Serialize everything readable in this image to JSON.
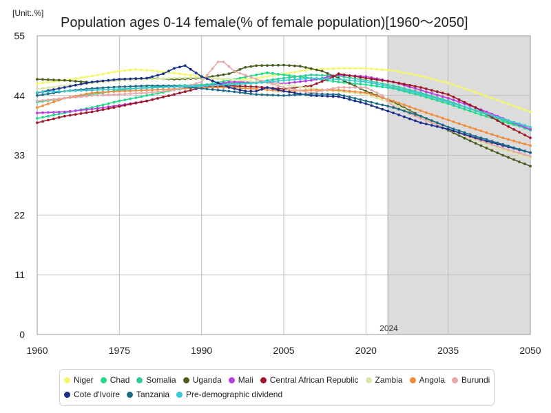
{
  "chart_data": {
    "type": "line",
    "title": "Population ages 0-14 female(% of female population)[1960～2050]",
    "unit_label": "[Unit:.%]",
    "xlabel": "",
    "ylabel": "",
    "xlim": [
      1960,
      2050
    ],
    "ylim": [
      0,
      55
    ],
    "x_ticks": [
      1960,
      1975,
      1990,
      2005,
      2020,
      2035,
      2050
    ],
    "y_ticks": [
      0,
      11,
      22,
      33,
      44,
      55
    ],
    "forecast_start": 2024,
    "forecast_label": "2024",
    "grid": true,
    "legend_position": "bottom",
    "series": [
      {
        "name": "Niger",
        "color": "#f4f76a",
        "points": [
          [
            1960,
            46.2
          ],
          [
            1965,
            46.8
          ],
          [
            1970,
            47.6
          ],
          [
            1975,
            48.5
          ],
          [
            1978,
            48.8
          ],
          [
            1982,
            48.5
          ],
          [
            1990,
            47.5
          ],
          [
            1995,
            46.8
          ],
          [
            2000,
            47.2
          ],
          [
            2005,
            48.0
          ],
          [
            2010,
            48.8
          ],
          [
            2015,
            49.0
          ],
          [
            2020,
            49.0
          ],
          [
            2025,
            48.6
          ],
          [
            2030,
            47.6
          ],
          [
            2035,
            46.3
          ],
          [
            2040,
            44.6
          ],
          [
            2045,
            42.8
          ],
          [
            2050,
            41.0
          ]
        ]
      },
      {
        "name": "Chad",
        "color": "#22d98a",
        "points": [
          [
            1960,
            39.8
          ],
          [
            1965,
            40.8
          ],
          [
            1970,
            41.8
          ],
          [
            1975,
            43.0
          ],
          [
            1980,
            44.0
          ],
          [
            1985,
            45.0
          ],
          [
            1990,
            45.8
          ],
          [
            1995,
            46.8
          ],
          [
            2000,
            47.8
          ],
          [
            2002,
            48.2
          ],
          [
            2005,
            47.8
          ],
          [
            2010,
            47.2
          ],
          [
            2015,
            46.5
          ],
          [
            2020,
            46.0
          ],
          [
            2025,
            45.3
          ],
          [
            2030,
            44.0
          ],
          [
            2035,
            42.5
          ],
          [
            2040,
            40.8
          ],
          [
            2045,
            39.2
          ],
          [
            2050,
            37.8
          ]
        ]
      },
      {
        "name": "Somalia",
        "color": "#33cc99",
        "points": [
          [
            1960,
            42.8
          ],
          [
            1965,
            43.5
          ],
          [
            1970,
            44.2
          ],
          [
            1975,
            45.0
          ],
          [
            1980,
            45.5
          ],
          [
            1985,
            45.8
          ],
          [
            1990,
            46.0
          ],
          [
            1995,
            46.2
          ],
          [
            2000,
            46.5
          ],
          [
            2005,
            47.2
          ],
          [
            2010,
            47.8
          ],
          [
            2015,
            47.6
          ],
          [
            2020,
            46.8
          ],
          [
            2025,
            45.8
          ],
          [
            2030,
            44.5
          ],
          [
            2035,
            43.0
          ],
          [
            2040,
            41.2
          ],
          [
            2045,
            39.5
          ],
          [
            2050,
            37.6
          ]
        ]
      },
      {
        "name": "Uganda",
        "color": "#4a5e1f",
        "points": [
          [
            1960,
            47.0
          ],
          [
            1965,
            46.8
          ],
          [
            1970,
            46.4
          ],
          [
            1975,
            46.8
          ],
          [
            1980,
            47.2
          ],
          [
            1985,
            47.0
          ],
          [
            1990,
            47.2
          ],
          [
            1995,
            48.0
          ],
          [
            1998,
            49.2
          ],
          [
            2000,
            49.5
          ],
          [
            2005,
            49.6
          ],
          [
            2008,
            49.4
          ],
          [
            2012,
            48.5
          ],
          [
            2015,
            47.2
          ],
          [
            2020,
            44.8
          ],
          [
            2025,
            42.8
          ],
          [
            2030,
            40.2
          ],
          [
            2035,
            37.6
          ],
          [
            2040,
            35.2
          ],
          [
            2045,
            33.0
          ],
          [
            2050,
            31.0
          ]
        ]
      },
      {
        "name": "Mali",
        "color": "#b83ee0",
        "points": [
          [
            1960,
            40.8
          ],
          [
            1965,
            41.0
          ],
          [
            1970,
            41.5
          ],
          [
            1975,
            42.2
          ],
          [
            1980,
            43.0
          ],
          [
            1985,
            44.2
          ],
          [
            1990,
            45.5
          ],
          [
            1995,
            46.5
          ],
          [
            2000,
            46.5
          ],
          [
            2005,
            46.2
          ],
          [
            2010,
            46.8
          ],
          [
            2015,
            47.8
          ],
          [
            2020,
            47.5
          ],
          [
            2025,
            46.5
          ],
          [
            2030,
            45.0
          ],
          [
            2035,
            43.5
          ],
          [
            2040,
            41.8
          ],
          [
            2045,
            39.8
          ],
          [
            2050,
            37.8
          ]
        ]
      },
      {
        "name": "Central African Republic",
        "color": "#a01828",
        "points": [
          [
            1960,
            39.0
          ],
          [
            1965,
            40.2
          ],
          [
            1970,
            41.0
          ],
          [
            1975,
            42.0
          ],
          [
            1980,
            43.0
          ],
          [
            1985,
            44.2
          ],
          [
            1990,
            45.5
          ],
          [
            1995,
            45.8
          ],
          [
            2000,
            45.6
          ],
          [
            2005,
            45.2
          ],
          [
            2010,
            45.8
          ],
          [
            2013,
            47.0
          ],
          [
            2015,
            48.0
          ],
          [
            2020,
            47.2
          ],
          [
            2025,
            46.5
          ],
          [
            2030,
            45.5
          ],
          [
            2035,
            44.2
          ],
          [
            2040,
            41.8
          ],
          [
            2045,
            38.8
          ],
          [
            2050,
            36.2
          ]
        ]
      },
      {
        "name": "Zambia",
        "color": "#d8e8a8",
        "points": [
          [
            1960,
            45.2
          ],
          [
            1965,
            45.8
          ],
          [
            1970,
            46.3
          ],
          [
            1975,
            46.8
          ],
          [
            1980,
            47.0
          ],
          [
            1985,
            47.2
          ],
          [
            1990,
            47.3
          ],
          [
            1995,
            47.0
          ],
          [
            2000,
            46.5
          ],
          [
            2005,
            46.0
          ],
          [
            2010,
            45.3
          ],
          [
            2015,
            44.8
          ],
          [
            2020,
            44.2
          ],
          [
            2025,
            42.5
          ],
          [
            2030,
            40.0
          ],
          [
            2035,
            37.8
          ],
          [
            2040,
            35.8
          ],
          [
            2045,
            34.0
          ],
          [
            2050,
            32.5
          ]
        ]
      },
      {
        "name": "Angola",
        "color": "#f08c3c",
        "points": [
          [
            1960,
            41.8
          ],
          [
            1965,
            43.5
          ],
          [
            1970,
            44.5
          ],
          [
            1975,
            44.8
          ],
          [
            1980,
            45.0
          ],
          [
            1985,
            45.2
          ],
          [
            1990,
            45.5
          ],
          [
            1995,
            45.5
          ],
          [
            2000,
            45.2
          ],
          [
            2005,
            44.8
          ],
          [
            2010,
            45.0
          ],
          [
            2015,
            45.0
          ],
          [
            2020,
            44.5
          ],
          [
            2025,
            43.0
          ],
          [
            2030,
            41.2
          ],
          [
            2035,
            39.5
          ],
          [
            2040,
            37.8
          ],
          [
            2045,
            36.2
          ],
          [
            2050,
            34.8
          ]
        ]
      },
      {
        "name": "Burundi",
        "color": "#e8a8a8",
        "points": [
          [
            1960,
            43.0
          ],
          [
            1965,
            43.5
          ],
          [
            1970,
            44.0
          ],
          [
            1975,
            44.2
          ],
          [
            1980,
            44.5
          ],
          [
            1985,
            45.0
          ],
          [
            1990,
            46.5
          ],
          [
            1993,
            50.2
          ],
          [
            1994,
            50.2
          ],
          [
            1996,
            48.5
          ],
          [
            2000,
            47.0
          ],
          [
            2005,
            45.5
          ],
          [
            2010,
            44.5
          ],
          [
            2015,
            45.5
          ],
          [
            2020,
            45.5
          ],
          [
            2023,
            44.0
          ],
          [
            2025,
            42.0
          ],
          [
            2030,
            39.8
          ],
          [
            2035,
            37.8
          ],
          [
            2040,
            36.0
          ],
          [
            2045,
            34.3
          ],
          [
            2050,
            32.8
          ]
        ]
      },
      {
        "name": "Cote d'Ivoire",
        "color": "#1a2f8c",
        "points": [
          [
            1960,
            44.5
          ],
          [
            1965,
            45.5
          ],
          [
            1970,
            46.5
          ],
          [
            1975,
            47.0
          ],
          [
            1980,
            47.2
          ],
          [
            1983,
            48.0
          ],
          [
            1985,
            49.0
          ],
          [
            1987,
            49.5
          ],
          [
            1990,
            47.5
          ],
          [
            1995,
            45.5
          ],
          [
            1998,
            44.8
          ],
          [
            2000,
            44.8
          ],
          [
            2002,
            45.5
          ],
          [
            2005,
            44.8
          ],
          [
            2010,
            44.0
          ],
          [
            2015,
            43.8
          ],
          [
            2020,
            42.5
          ],
          [
            2025,
            40.8
          ],
          [
            2030,
            39.0
          ],
          [
            2035,
            37.8
          ],
          [
            2040,
            36.2
          ],
          [
            2045,
            34.8
          ],
          [
            2050,
            33.5
          ]
        ]
      },
      {
        "name": "Tanzania",
        "color": "#1b6a8a",
        "points": [
          [
            1960,
            44.0
          ],
          [
            1965,
            44.8
          ],
          [
            1970,
            45.3
          ],
          [
            1975,
            45.6
          ],
          [
            1980,
            45.8
          ],
          [
            1985,
            45.8
          ],
          [
            1990,
            45.3
          ],
          [
            1995,
            44.8
          ],
          [
            2000,
            44.2
          ],
          [
            2005,
            44.0
          ],
          [
            2010,
            44.3
          ],
          [
            2015,
            44.2
          ],
          [
            2020,
            43.0
          ],
          [
            2025,
            41.8
          ],
          [
            2030,
            40.2
          ],
          [
            2035,
            38.2
          ],
          [
            2040,
            36.5
          ],
          [
            2045,
            35.0
          ],
          [
            2050,
            33.5
          ]
        ]
      },
      {
        "name": "Pre-demographic dividend",
        "color": "#3cc8d2",
        "points": [
          [
            1960,
            44.6
          ],
          [
            1965,
            44.8
          ],
          [
            1970,
            45.0
          ],
          [
            1975,
            45.2
          ],
          [
            1980,
            45.4
          ],
          [
            1985,
            45.6
          ],
          [
            1990,
            45.8
          ],
          [
            1995,
            46.0
          ],
          [
            2000,
            46.3
          ],
          [
            2005,
            46.8
          ],
          [
            2010,
            47.2
          ],
          [
            2015,
            47.0
          ],
          [
            2020,
            46.5
          ],
          [
            2025,
            45.5
          ],
          [
            2030,
            44.3
          ],
          [
            2035,
            42.8
          ],
          [
            2040,
            41.3
          ],
          [
            2045,
            39.7
          ],
          [
            2050,
            38.2
          ]
        ]
      }
    ]
  }
}
